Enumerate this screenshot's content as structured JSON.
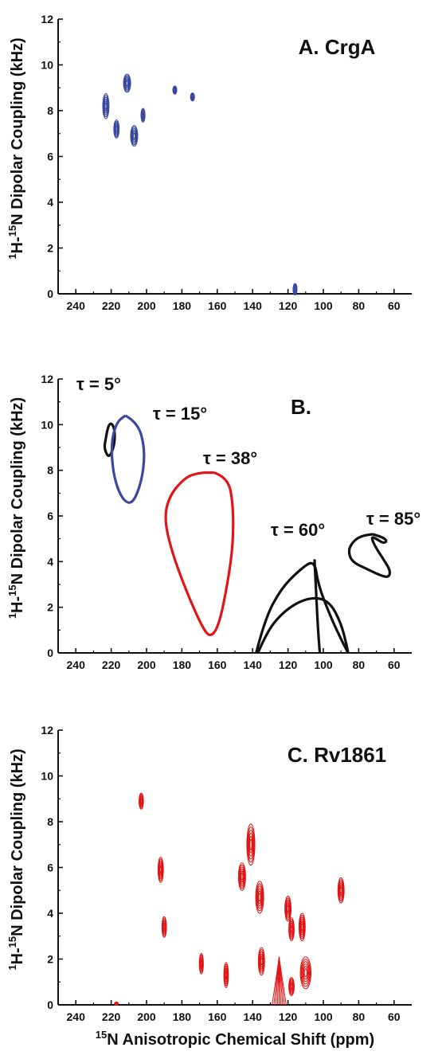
{
  "colors": {
    "blue": "#3a48a0",
    "red": "#e01616",
    "black": "#111111"
  },
  "xlabel": {
    "sup": "15",
    "text": "N Anisotropic Chemical Shift (ppm)"
  },
  "chart_data": [
    {
      "type": "scatter",
      "title": "A. CrgA",
      "color": "#3a48a0",
      "ylabel": {
        "pre": "1",
        "mid": "H-",
        "sup": "15",
        "rest": "N Dipolar Coupling (kHz)"
      },
      "xticks": [
        240,
        220,
        200,
        180,
        160,
        140,
        120,
        100,
        80,
        60
      ],
      "yticks": [
        0,
        2,
        4,
        6,
        8,
        10,
        12
      ],
      "xlim": [
        250,
        50
      ],
      "ylim": [
        0,
        12
      ],
      "peaks": [
        {
          "x": 223,
          "y": 8.2,
          "w": 3.5,
          "h": 1.1
        },
        {
          "x": 211,
          "y": 9.2,
          "w": 4,
          "h": 0.8
        },
        {
          "x": 217,
          "y": 7.2,
          "w": 3,
          "h": 0.8
        },
        {
          "x": 207,
          "y": 6.9,
          "w": 4,
          "h": 0.9
        },
        {
          "x": 202,
          "y": 7.8,
          "w": 2,
          "h": 0.6
        },
        {
          "x": 184,
          "y": 8.9,
          "w": 1.5,
          "h": 0.35
        },
        {
          "x": 174,
          "y": 8.6,
          "w": 2,
          "h": 0.35
        },
        {
          "x": 116,
          "y": 0.2,
          "w": 2,
          "h": 0.5
        }
      ]
    },
    {
      "type": "line",
      "title": "B.",
      "ylabel": {
        "pre": "1",
        "mid": "H-",
        "sup": "15",
        "rest": "N Dipolar Coupling (kHz)"
      },
      "xticks": [
        240,
        220,
        200,
        180,
        160,
        140,
        120,
        100,
        80,
        60
      ],
      "yticks": [
        0,
        2,
        4,
        6,
        8,
        10,
        12
      ],
      "xlim": [
        250,
        50
      ],
      "ylim": [
        0,
        12
      ],
      "annotations": [
        {
          "text": "τ = 5°",
          "color": "#111111"
        },
        {
          "text": "τ = 15°",
          "color": "#3a48a0"
        },
        {
          "text": "τ = 38°",
          "color": "#e01616"
        },
        {
          "text": "τ = 60°",
          "color": "#111111"
        },
        {
          "text": "τ = 85°",
          "color": "#111111"
        }
      ],
      "series": [
        {
          "color": "#111111",
          "points": [
            [
              223,
              9.4
            ],
            [
              222,
              9.9
            ],
            [
              220,
              10.1
            ],
            [
              218,
              9.8
            ],
            [
              218,
              9.2
            ],
            [
              220,
              8.7
            ],
            [
              222,
              8.6
            ],
            [
              224,
              9.0
            ],
            [
              223,
              9.4
            ]
          ]
        },
        {
          "color": "#3a48a0",
          "points": [
            [
              212,
              10.4
            ],
            [
              205,
              10.1
            ],
            [
              201,
              9.0
            ],
            [
              202,
              7.8
            ],
            [
              206,
              6.8
            ],
            [
              210,
              6.5
            ],
            [
              215,
              6.9
            ],
            [
              219,
              7.9
            ],
            [
              220,
              9.2
            ],
            [
              217,
              10.1
            ],
            [
              212,
              10.4
            ]
          ]
        },
        {
          "color": "#e01616",
          "points": [
            [
              162,
              7.9
            ],
            [
              154,
              7.7
            ],
            [
              151,
              6.5
            ],
            [
              151,
              4.8
            ],
            [
              154,
              3.1
            ],
            [
              159,
              1.2
            ],
            [
              164,
              0.65
            ],
            [
              169,
              1.2
            ],
            [
              178,
              2.8
            ],
            [
              186,
              4.5
            ],
            [
              190,
              5.9
            ],
            [
              187,
              6.9
            ],
            [
              178,
              7.7
            ],
            [
              170,
              7.9
            ],
            [
              162,
              7.9
            ]
          ]
        },
        {
          "color": "#111111",
          "points": [
            [
              138,
              0
            ],
            [
              133,
              1.5
            ],
            [
              124,
              2.8
            ],
            [
              114,
              3.6
            ],
            [
              105,
              4.1
            ],
            [
              103,
              3.0
            ],
            [
              96,
              1.6
            ],
            [
              90,
              0.6
            ],
            [
              86,
              0
            ]
          ]
        },
        {
          "color": "#111111",
          "points": [
            [
              137,
              0
            ],
            [
              132,
              0.9
            ],
            [
              124,
              1.7
            ],
            [
              114,
              2.25
            ],
            [
              104,
              2.45
            ],
            [
              96,
              2.2
            ],
            [
              90,
              1.3
            ],
            [
              87,
              0.4
            ],
            [
              86,
              0
            ]
          ]
        },
        {
          "color": "#111111",
          "points": [
            [
              105,
              4.1
            ],
            [
              104,
              2.5
            ],
            [
              103,
              1.0
            ],
            [
              102,
              0
            ]
          ]
        },
        {
          "color": "#111111",
          "points": [
            [
              72,
              5.2
            ],
            [
              78,
              5.15
            ],
            [
              83,
              4.9
            ],
            [
              86,
              4.5
            ],
            [
              84,
              4.0
            ],
            [
              76,
              3.7
            ],
            [
              68,
              3.4
            ],
            [
              63,
              3.3
            ],
            [
              62,
              3.6
            ],
            [
              66,
              4.1
            ],
            [
              71,
              4.7
            ],
            [
              73,
              5.1
            ],
            [
              70,
              5.0
            ],
            [
              66,
              4.8
            ],
            [
              64,
              4.9
            ],
            [
              66,
              5.05
            ],
            [
              72,
              5.2
            ]
          ]
        }
      ]
    },
    {
      "type": "scatter",
      "title": "C. Rv1861",
      "color": "#e01616",
      "ylabel": {
        "pre": "1",
        "mid": "H-",
        "sup": "15",
        "rest": "N Dipolar Coupling (kHz)"
      },
      "xticks": [
        240,
        220,
        200,
        180,
        160,
        140,
        120,
        100,
        80,
        60
      ],
      "yticks": [
        0,
        2,
        4,
        6,
        8,
        10,
        12
      ],
      "xlim": [
        250,
        50
      ],
      "ylim": [
        0,
        12
      ],
      "peaks": [
        {
          "x": 203,
          "y": 8.9,
          "w": 2.5,
          "h": 0.7
        },
        {
          "x": 192,
          "y": 5.9,
          "w": 3,
          "h": 1.1
        },
        {
          "x": 190,
          "y": 3.4,
          "w": 2.5,
          "h": 0.9
        },
        {
          "x": 169,
          "y": 1.8,
          "w": 2.2,
          "h": 0.9
        },
        {
          "x": 155,
          "y": 1.3,
          "w": 2.5,
          "h": 1.1
        },
        {
          "x": 146,
          "y": 5.6,
          "w": 4,
          "h": 1.2
        },
        {
          "x": 141,
          "y": 7.0,
          "w": 4.5,
          "h": 1.8
        },
        {
          "x": 136,
          "y": 4.7,
          "w": 4.5,
          "h": 1.4
        },
        {
          "x": 135,
          "y": 1.9,
          "w": 3.5,
          "h": 1.2
        },
        {
          "x": 120,
          "y": 4.2,
          "w": 3.5,
          "h": 1.1
        },
        {
          "x": 118,
          "y": 3.3,
          "w": 3,
          "h": 1.0
        },
        {
          "x": 112,
          "y": 3.4,
          "w": 3.5,
          "h": 1.2
        },
        {
          "x": 110,
          "y": 1.4,
          "w": 6,
          "h": 1.4
        },
        {
          "x": 118,
          "y": 0.8,
          "w": 3,
          "h": 0.8
        },
        {
          "x": 90,
          "y": 5.0,
          "w": 3.5,
          "h": 1.1
        },
        {
          "x": 217,
          "y": 0.05,
          "w": 1.5,
          "h": 0.1
        }
      ],
      "fan": {
        "apex_x": 125,
        "apex_y": 2.1,
        "base_x0": 129,
        "base_x1": 121
      }
    }
  ]
}
